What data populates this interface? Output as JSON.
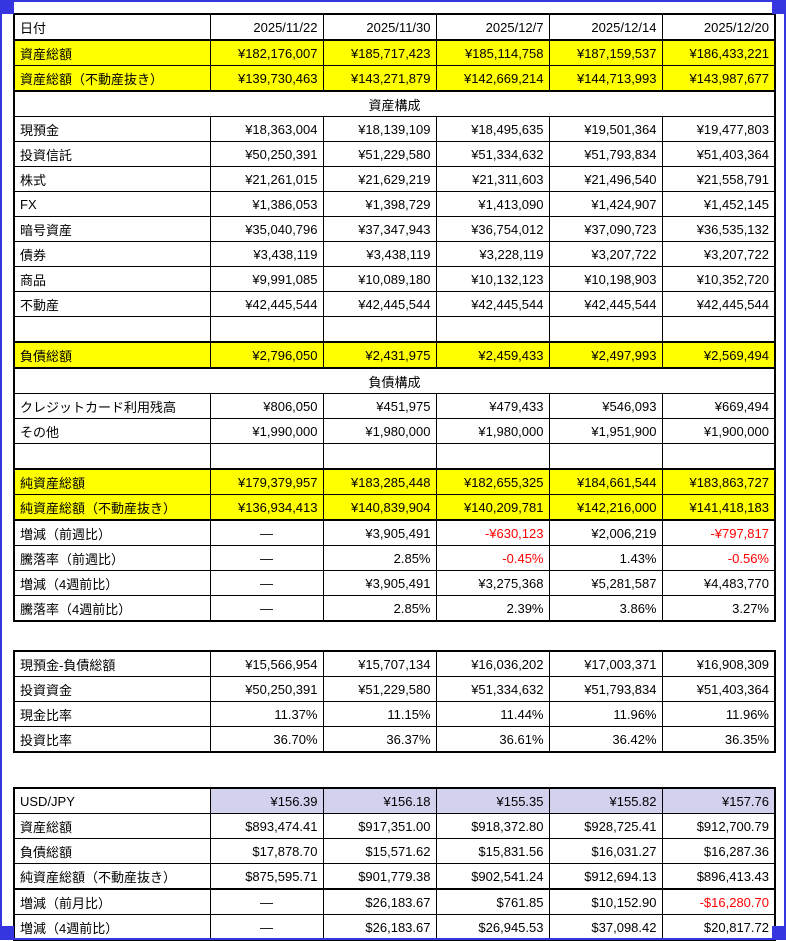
{
  "selection_frame": {
    "color": "#3636e0"
  },
  "colors": {
    "highlight_yellow": "#ffff00",
    "highlight_lavender": "#d2d2ee",
    "negative_red": "#ff0000",
    "grid_black": "#000000"
  },
  "tables": [
    {
      "name": "assets-and-liabilities",
      "rows": [
        {
          "label": "日付",
          "values": [
            "2025/11/22",
            "2025/11/30",
            "2025/12/7",
            "2025/12/14",
            "2025/12/20"
          ],
          "thick_bottom": true
        },
        {
          "label": "資産総額",
          "fill": "yellow",
          "values": [
            "¥182,176,007",
            "¥185,717,423",
            "¥185,114,758",
            "¥187,159,537",
            "¥186,433,221"
          ]
        },
        {
          "label": "資産総額（不動産抜き）",
          "fill": "yellow",
          "thick_bottom": true,
          "values": [
            "¥139,730,463",
            "¥143,271,879",
            "¥142,669,214",
            "¥144,713,993",
            "¥143,987,677"
          ]
        },
        {
          "section": "資産構成"
        },
        {
          "label": "現預金",
          "values": [
            "¥18,363,004",
            "¥18,139,109",
            "¥18,495,635",
            "¥19,501,364",
            "¥19,477,803"
          ]
        },
        {
          "label": "投資信託",
          "values": [
            "¥50,250,391",
            "¥51,229,580",
            "¥51,334,632",
            "¥51,793,834",
            "¥51,403,364"
          ]
        },
        {
          "label": "株式",
          "values": [
            "¥21,261,015",
            "¥21,629,219",
            "¥21,311,603",
            "¥21,496,540",
            "¥21,558,791"
          ]
        },
        {
          "label": "FX",
          "values": [
            "¥1,386,053",
            "¥1,398,729",
            "¥1,413,090",
            "¥1,424,907",
            "¥1,452,145"
          ]
        },
        {
          "label": "暗号資産",
          "values": [
            "¥35,040,796",
            "¥37,347,943",
            "¥36,754,012",
            "¥37,090,723",
            "¥36,535,132"
          ]
        },
        {
          "label": "債券",
          "values": [
            "¥3,438,119",
            "¥3,438,119",
            "¥3,228,119",
            "¥3,207,722",
            "¥3,207,722"
          ]
        },
        {
          "label": "商品",
          "values": [
            "¥9,991,085",
            "¥10,089,180",
            "¥10,132,123",
            "¥10,198,903",
            "¥10,352,720"
          ]
        },
        {
          "label": "不動産",
          "values": [
            "¥42,445,544",
            "¥42,445,544",
            "¥42,445,544",
            "¥42,445,544",
            "¥42,445,544"
          ]
        },
        {
          "label": "",
          "values": [
            "",
            "",
            "",
            "",
            ""
          ],
          "thick_bottom": true
        },
        {
          "label": "負債総額",
          "fill": "yellow",
          "thick_bottom": true,
          "values": [
            "¥2,796,050",
            "¥2,431,975",
            "¥2,459,433",
            "¥2,497,993",
            "¥2,569,494"
          ]
        },
        {
          "section": "負債構成"
        },
        {
          "label": "クレジットカード利用残高",
          "values": [
            "¥806,050",
            "¥451,975",
            "¥479,433",
            "¥546,093",
            "¥669,494"
          ]
        },
        {
          "label": "その他",
          "values": [
            "¥1,990,000",
            "¥1,980,000",
            "¥1,980,000",
            "¥1,951,900",
            "¥1,900,000"
          ]
        },
        {
          "label": "",
          "values": [
            "",
            "",
            "",
            "",
            ""
          ],
          "thick_bottom": true
        },
        {
          "label": "純資産総額",
          "fill": "yellow",
          "values": [
            "¥179,379,957",
            "¥183,285,448",
            "¥182,655,325",
            "¥184,661,544",
            "¥183,863,727"
          ]
        },
        {
          "label": "純資産総額（不動産抜き）",
          "fill": "yellow",
          "thick_bottom": true,
          "values": [
            "¥136,934,413",
            "¥140,839,904",
            "¥140,209,781",
            "¥142,216,000",
            "¥141,418,183"
          ]
        },
        {
          "label": "増減（前週比）",
          "values": [
            "―",
            "¥3,905,491",
            "-¥630,123",
            "¥2,006,219",
            "-¥797,817"
          ]
        },
        {
          "label": "騰落率（前週比）",
          "values": [
            "―",
            "2.85%",
            "-0.45%",
            "1.43%",
            "-0.56%"
          ]
        },
        {
          "label": "増減（4週前比）",
          "values": [
            "―",
            "¥3,905,491",
            "¥3,275,368",
            "¥5,281,587",
            "¥4,483,770"
          ]
        },
        {
          "label": "騰落率（4週前比）",
          "values": [
            "―",
            "2.85%",
            "2.39%",
            "3.86%",
            "3.27%"
          ]
        }
      ]
    },
    {
      "name": "cash-and-investment-ratios",
      "rows": [
        {
          "label": "現預金-負債総額",
          "values": [
            "¥15,566,954",
            "¥15,707,134",
            "¥16,036,202",
            "¥17,003,371",
            "¥16,908,309"
          ]
        },
        {
          "label": "投資資金",
          "values": [
            "¥50,250,391",
            "¥51,229,580",
            "¥51,334,632",
            "¥51,793,834",
            "¥51,403,364"
          ]
        },
        {
          "label": "現金比率",
          "values": [
            "11.37%",
            "11.15%",
            "11.44%",
            "11.96%",
            "11.96%"
          ]
        },
        {
          "label": "投資比率",
          "values": [
            "36.70%",
            "36.37%",
            "36.61%",
            "36.42%",
            "36.35%"
          ]
        }
      ]
    },
    {
      "name": "usd-conversion",
      "rows": [
        {
          "label": "USD/JPY",
          "fill": "lavender",
          "values": [
            "¥156.39",
            "¥156.18",
            "¥155.35",
            "¥155.82",
            "¥157.76"
          ]
        },
        {
          "label": "資産総額",
          "values": [
            "$893,474.41",
            "$917,351.00",
            "$918,372.80",
            "$928,725.41",
            "$912,700.79"
          ]
        },
        {
          "label": "負債総額",
          "values": [
            "$17,878.70",
            "$15,571.62",
            "$15,831.56",
            "$16,031.27",
            "$16,287.36"
          ]
        },
        {
          "label": "純資産総額（不動産抜き）",
          "thick_bottom": true,
          "values": [
            "$875,595.71",
            "$901,779.38",
            "$902,541.24",
            "$912,694.13",
            "$896,413.43"
          ]
        },
        {
          "label": "増減（前月比）",
          "values": [
            "―",
            "$26,183.67",
            "$761.85",
            "$10,152.90",
            "-$16,280.70"
          ]
        },
        {
          "label": "増減（4週前比）",
          "values": [
            "―",
            "$26,183.67",
            "$26,945.53",
            "$37,098.42",
            "$20,817.72"
          ]
        }
      ]
    }
  ]
}
